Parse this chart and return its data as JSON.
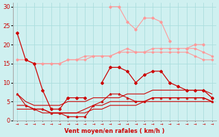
{
  "x": [
    0,
    1,
    2,
    3,
    4,
    5,
    6,
    7,
    8,
    9,
    10,
    11,
    12,
    13,
    14,
    15,
    16,
    17,
    18,
    19,
    20,
    21,
    22,
    23
  ],
  "series_pink_jagged": [
    23,
    null,
    null,
    null,
    null,
    null,
    null,
    null,
    null,
    null,
    null,
    30,
    30,
    26,
    24,
    27,
    27,
    26,
    21,
    null,
    19,
    20,
    20,
    null
  ],
  "series_pink_flat1": [
    16,
    16,
    15,
    15,
    15,
    15,
    16,
    16,
    16,
    17,
    17,
    17,
    18,
    18,
    18,
    18,
    18,
    18,
    18,
    18,
    18,
    17,
    16,
    16
  ],
  "series_pink_flat2": [
    16,
    16,
    15,
    15,
    15,
    15,
    16,
    16,
    17,
    17,
    17,
    17,
    18,
    19,
    18,
    18,
    19,
    19,
    19,
    19,
    19,
    19,
    18,
    17
  ],
  "series_dark_red_jagged": [
    23,
    16,
    15,
    8,
    3,
    3,
    6,
    6,
    6,
    null,
    10,
    14,
    14,
    13,
    10,
    12,
    13,
    13,
    10,
    9,
    8,
    8,
    8,
    6
  ],
  "series_red_flat1": [
    7,
    5,
    4,
    4,
    4,
    4,
    5,
    5,
    5,
    6,
    6,
    6,
    6,
    7,
    7,
    7,
    8,
    8,
    8,
    8,
    8,
    8,
    8,
    7
  ],
  "series_red_flat2": [
    4,
    4,
    3,
    3,
    2,
    2,
    2,
    2,
    3,
    4,
    4,
    5,
    5,
    5,
    5,
    5,
    6,
    6,
    6,
    6,
    6,
    6,
    6,
    5
  ],
  "series_red_flat3": [
    3,
    3,
    3,
    2,
    2,
    2,
    2,
    2,
    2,
    3,
    3,
    4,
    4,
    4,
    4,
    5,
    5,
    5,
    5,
    5,
    5,
    5,
    5,
    5
  ],
  "series_red_bottom": [
    7,
    4,
    3,
    3,
    2,
    2,
    1,
    1,
    1,
    4,
    5,
    7,
    7,
    6,
    5,
    5,
    6,
    6,
    6,
    6,
    6,
    6,
    6,
    5
  ],
  "bg_color": "#cff0f0",
  "grid_color": "#aadddd",
  "dark_red": "#cc0000",
  "pink": "#ff9999",
  "ylim": [
    0,
    31
  ],
  "xlim": [
    -0.5,
    23.5
  ],
  "yticks": [
    0,
    5,
    10,
    15,
    20,
    25,
    30
  ],
  "xticks": [
    0,
    1,
    2,
    3,
    4,
    5,
    6,
    7,
    8,
    9,
    10,
    11,
    12,
    13,
    14,
    15,
    16,
    17,
    18,
    19,
    20,
    21,
    22,
    23
  ],
  "xlabel": "Vent moyen/en rafales ( km/h )"
}
